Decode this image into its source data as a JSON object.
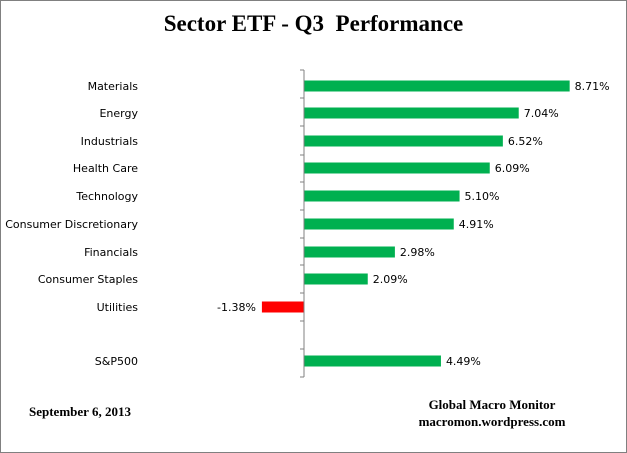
{
  "chart_data": {
    "type": "bar",
    "orientation": "horizontal",
    "title": "Sector ETF - Q3  Performance",
    "categories": [
      "Materials",
      "Energy",
      "Industrials",
      "Health Care",
      "Technology",
      "Consumer Discretionary",
      "Financials",
      "Consumer Staples",
      "Utilities",
      "S&P500"
    ],
    "values": [
      8.71,
      7.04,
      6.52,
      6.09,
      5.1,
      4.91,
      2.98,
      2.09,
      -1.38,
      4.49
    ],
    "value_labels": [
      "8.71%",
      "7.04%",
      "6.52%",
      "6.09%",
      "5.10%",
      "4.91%",
      "2.98%",
      "2.09%",
      "-1.38%",
      "4.49%"
    ],
    "unit": "%",
    "xlim": [
      -2,
      9
    ],
    "grid": false,
    "legend": "none",
    "colors": {
      "positive": "#00B050",
      "negative": "#FF0000",
      "axis": "#808080"
    }
  },
  "footer": {
    "date": "September 6, 2013",
    "credit_line1": "Global Macro Monitor",
    "credit_line2": "macromon.wordpress.com"
  }
}
